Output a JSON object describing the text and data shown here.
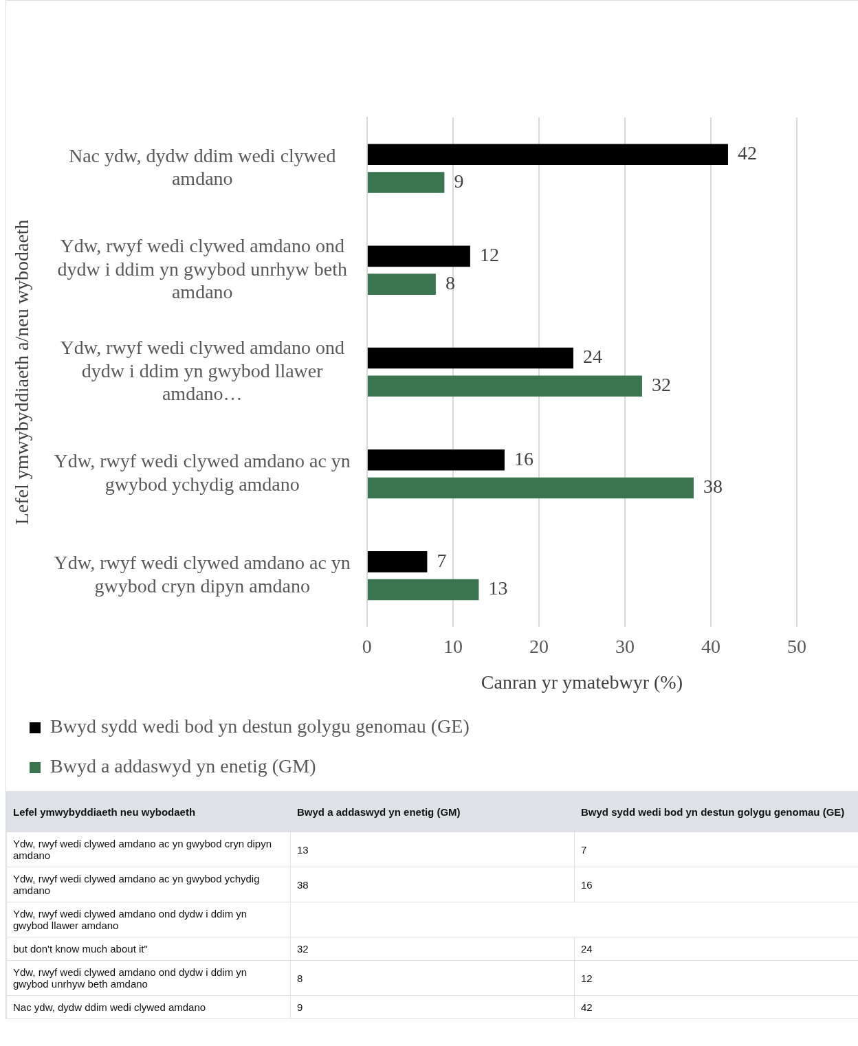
{
  "chart_data": {
    "type": "bar",
    "orientation": "horizontal",
    "xlabel": "Canran yr ymatebwyr (%)",
    "ylabel": "Lefel ymwybyddiaeth a/neu wybodaeth",
    "categories": [
      "Nac ydw, dydw ddim wedi clywed amdano",
      "Ydw, rwyf wedi clywed amdano ond dydw i ddim yn gwybod unrhyw beth amdano",
      "Ydw, rwyf wedi clywed amdano ond dydw i ddim yn gwybod llawer amdano…",
      "Ydw, rwyf wedi clywed amdano ac yn gwybod ychydig amdano",
      "Ydw, rwyf wedi clywed amdano ac yn gwybod cryn dipyn amdano"
    ],
    "series": [
      {
        "name": "Bwyd sydd wedi bod yn destun golygu genomau (GE)",
        "color": "#000000",
        "values": [
          42,
          12,
          24,
          16,
          7
        ]
      },
      {
        "name": "Bwyd a addaswyd yn enetig (GM)",
        "color": "#3a7550",
        "values": [
          9,
          8,
          32,
          38,
          13
        ]
      }
    ],
    "xlim": [
      0,
      50
    ],
    "xticks": [
      0,
      10,
      20,
      30,
      40,
      50
    ],
    "grid": "x",
    "legend": "bottom",
    "data_labels": true,
    "annotations": [
      "Lefel ymwybyddiaeth neu wybodaeth",
      "Bwyd a addaswyd yn enetig (GM)",
      "Bwyd sydd wedi bod yn destun golygu genomau (GE)",
      "Ydw, rwyf wedi clywed amdano ac yn gwybod cryn dipyn amdano",
      "13",
      "7",
      "Ydw, rwyf wedi clywed amdano ac yn gwybod ychydig amdano",
      "38",
      "16",
      "Ydw, rwyf wedi clywed amdano ond dydw i ddim yn gwybod llawer amdano",
      "but don't know much about it\"",
      "32",
      "24",
      "Ydw, rwyf wedi clywed amdano ond dydw i ddim yn gwybod unrhyw beth amdano",
      "8",
      "12",
      "Nac ydw, dydw ddim wedi clywed amdano",
      "9",
      "42"
    ]
  }
}
